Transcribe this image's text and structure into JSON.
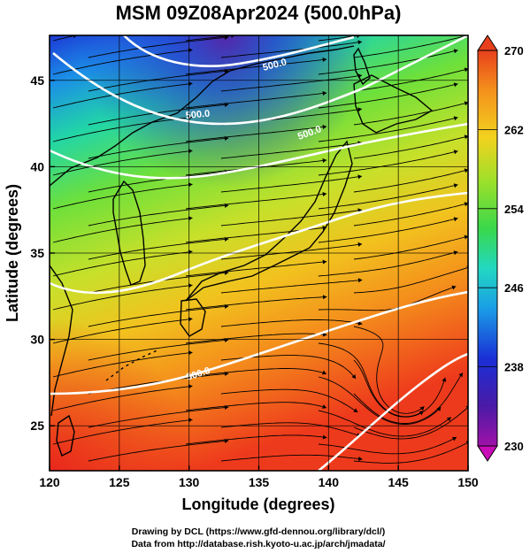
{
  "title": "MSM 09Z08Apr2024 (500.0hPa)",
  "x_axis": {
    "label": "Longitude (degrees)",
    "range": [
      120,
      150
    ],
    "ticks": [
      "120",
      "125",
      "130",
      "135",
      "140",
      "145",
      "150"
    ]
  },
  "y_axis": {
    "label": "Latitude  (degrees)",
    "range": [
      22.4,
      47.6
    ],
    "ticks": [
      "25",
      "30",
      "35",
      "40",
      "45"
    ]
  },
  "colorbar": {
    "range": [
      230,
      270
    ],
    "labels": [
      "270",
      "262",
      "254",
      "246",
      "238",
      "230"
    ]
  },
  "contour_labels": [
    "500.0",
    "500.0",
    "500.0",
    "500.0"
  ],
  "credits": {
    "line1": "Drawing by DCL (https://www.gfd-dennou.org/library/dcl/)",
    "line2": "Data from http://database.rish.kyoto-u.ac.jp/arch/jmadata/"
  }
}
